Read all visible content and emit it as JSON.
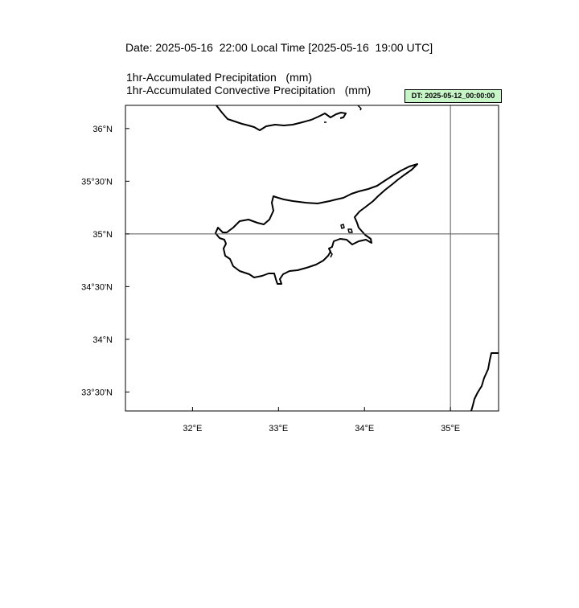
{
  "header": {
    "date_line": "Date: 2025-05-16  22:00 Local Time [2025-05-16  19:00 UTC]",
    "title_line1": "1hr-Accumulated Precipitation   (mm)",
    "title_line2": "1hr-Accumulated Convective Precipitation   (mm)",
    "dt_label": "DT: 2025-05-12_00:00:00"
  },
  "map": {
    "region": "Cyprus",
    "lon_range": [
      31.22,
      35.56
    ],
    "lat_range": [
      33.32,
      36.22
    ],
    "reference_lines": {
      "lon": 35.0,
      "lat": 35.0
    },
    "coastline_color": "#000000",
    "x_ticks": [
      {
        "value": 32,
        "label": "32°E"
      },
      {
        "value": 33,
        "label": "33°E"
      },
      {
        "value": 34,
        "label": "34°E"
      },
      {
        "value": 35,
        "label": "35°E"
      }
    ],
    "y_ticks": [
      {
        "value": 36.0,
        "label": "36°N"
      },
      {
        "value": 35.5,
        "label": "35°30'N"
      },
      {
        "value": 35.0,
        "label": "35°N"
      },
      {
        "value": 34.5,
        "label": "34°30'N"
      },
      {
        "value": 34.0,
        "label": "34°N"
      },
      {
        "value": 33.5,
        "label": "33°30'N"
      }
    ]
  }
}
